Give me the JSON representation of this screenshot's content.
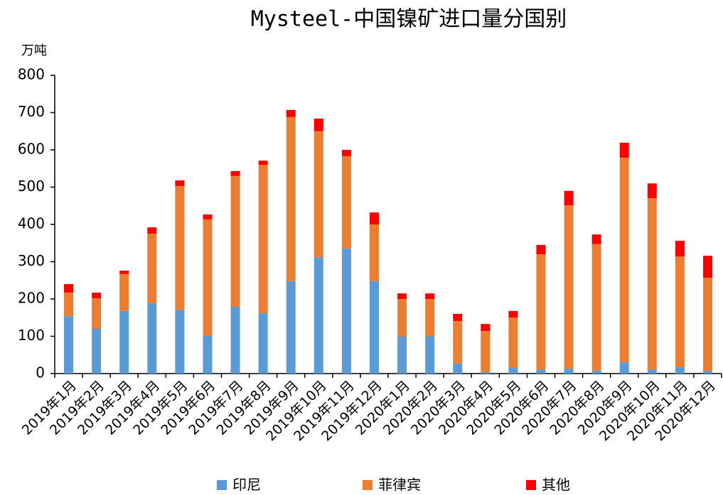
{
  "chart_data": {
    "type": "bar",
    "stacked": true,
    "title": "Mysteel-中国镍矿进口量分国别",
    "y_label": "万吨",
    "categories": [
      "2019年1月",
      "2019年2月",
      "2019年3月",
      "2019年4月",
      "2019年5月",
      "2019年6月",
      "2019年7月",
      "2019年8月",
      "2019年9月",
      "2019年10月",
      "2019年11月",
      "2019年12月",
      "2020年1月",
      "2020年2月",
      "2020年3月",
      "2020年4月",
      "2020年5月",
      "2020年6月",
      "2020年7月",
      "2020年8月",
      "2020年9月",
      "2020年10月",
      "2020年11月",
      "2020年12月"
    ],
    "series": [
      {
        "name": "印尼",
        "color": "#5b9bd5",
        "values": [
          154,
          120,
          168,
          189,
          171,
          101,
          179,
          162,
          248,
          312,
          335,
          248,
          99,
          100,
          27,
          4,
          15,
          11,
          13,
          8,
          30,
          11,
          17,
          7
        ]
      },
      {
        "name": "菲律宾",
        "color": "#ed7d31",
        "values": [
          63,
          82,
          99,
          186,
          332,
          312,
          351,
          398,
          440,
          338,
          248,
          152,
          101,
          100,
          114,
          110,
          135,
          309,
          438,
          339,
          549,
          459,
          297,
          250
        ]
      },
      {
        "name": "其他",
        "color": "#ff0000",
        "values": [
          23,
          15,
          9,
          17,
          15,
          14,
          13,
          11,
          19,
          34,
          17,
          32,
          15,
          15,
          19,
          19,
          18,
          25,
          39,
          26,
          40,
          40,
          42,
          59
        ]
      }
    ],
    "ylim": [
      0,
      800
    ],
    "yticks": [
      0,
      100,
      200,
      300,
      400,
      500,
      600,
      700,
      800
    ],
    "legend": "bottom"
  }
}
